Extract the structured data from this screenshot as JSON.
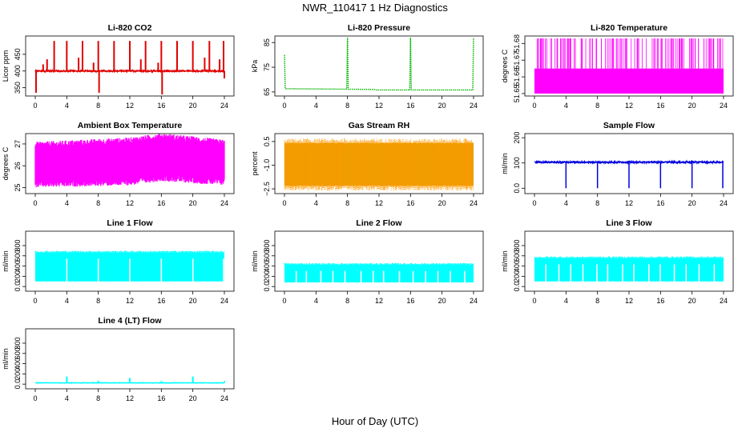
{
  "figure": {
    "title": "NWR_110417  1 Hz Diagnostics",
    "xlabel": "Hour of Day (UTC)"
  },
  "chart_data": [
    {
      "type": "line",
      "title": "Li-820 CO2",
      "ylabel": "Licor ppm",
      "color": "#e00000",
      "xlim": [
        0,
        24
      ],
      "ylim": [
        330,
        500
      ],
      "yticks": [
        350,
        400,
        450
      ],
      "baseline": 400,
      "noise": 4,
      "spikes": [
        {
          "x": 0.1,
          "y": 335
        },
        {
          "x": 1.0,
          "y": 420
        },
        {
          "x": 1.5,
          "y": 435
        },
        {
          "x": 2.4,
          "y": 490
        },
        {
          "x": 4.0,
          "y": 490
        },
        {
          "x": 5.5,
          "y": 440
        },
        {
          "x": 6.0,
          "y": 490
        },
        {
          "x": 7.4,
          "y": 425
        },
        {
          "x": 8.0,
          "y": 490
        },
        {
          "x": 8.1,
          "y": 335
        },
        {
          "x": 10.0,
          "y": 490
        },
        {
          "x": 12.0,
          "y": 490
        },
        {
          "x": 13.4,
          "y": 435
        },
        {
          "x": 14.0,
          "y": 490
        },
        {
          "x": 15.6,
          "y": 425
        },
        {
          "x": 16.0,
          "y": 490
        },
        {
          "x": 16.1,
          "y": 330
        },
        {
          "x": 18.0,
          "y": 490
        },
        {
          "x": 20.0,
          "y": 490
        },
        {
          "x": 21.5,
          "y": 440
        },
        {
          "x": 22.1,
          "y": 490
        },
        {
          "x": 23.4,
          "y": 435
        },
        {
          "x": 23.9,
          "y": 490
        },
        {
          "x": 24.0,
          "y": 378
        }
      ]
    },
    {
      "type": "line",
      "title": "Li-820 Pressure",
      "ylabel": "kPa",
      "color": "#00b400",
      "xlim": [
        0,
        24
      ],
      "ylim": [
        64,
        87
      ],
      "yticks": [
        65,
        75,
        85
      ],
      "points": [
        {
          "x": 0.0,
          "y": 80
        },
        {
          "x": 0.1,
          "y": 66.3
        },
        {
          "x": 7.9,
          "y": 66.1
        },
        {
          "x": 8.0,
          "y": 87
        },
        {
          "x": 8.1,
          "y": 66.1
        },
        {
          "x": 11.5,
          "y": 66.0
        },
        {
          "x": 11.6,
          "y": 65.8
        },
        {
          "x": 15.9,
          "y": 65.8
        },
        {
          "x": 16.0,
          "y": 87
        },
        {
          "x": 16.1,
          "y": 65.8
        },
        {
          "x": 23.9,
          "y": 65.8
        },
        {
          "x": 24.0,
          "y": 87
        }
      ]
    },
    {
      "type": "line",
      "title": "Li-820 Temperature",
      "ylabel": "degrees C",
      "color": "#ff00ff",
      "xlim": [
        0,
        24
      ],
      "ylim": [
        51.6495,
        51.6835
      ],
      "yticks": [
        51.65,
        51.66,
        51.67,
        51.68
      ],
      "band": [
        51.65,
        51.665
      ],
      "spike_top": 51.683
    },
    {
      "type": "line",
      "title": "Ambient Box Temperature",
      "ylabel": "degrees C",
      "color": "#ff00ff",
      "xlim": [
        0,
        24
      ],
      "ylim": [
        24.8,
        27.4
      ],
      "yticks": [
        25.0,
        26.0,
        27.0
      ],
      "band_lo": [
        {
          "x": 0,
          "y": 25.3
        },
        {
          "x": 12,
          "y": 25.4
        },
        {
          "x": 16,
          "y": 25.6
        },
        {
          "x": 24,
          "y": 25.4
        }
      ],
      "band_hi": [
        {
          "x": 0,
          "y": 26.8
        },
        {
          "x": 12,
          "y": 27.0
        },
        {
          "x": 16,
          "y": 27.2
        },
        {
          "x": 24,
          "y": 26.9
        }
      ]
    },
    {
      "type": "scatter",
      "title": "Gas Stream RH",
      "ylabel": "percent",
      "color": "#ff9900",
      "xlim": [
        0,
        24
      ],
      "ylim": [
        -2.7,
        0.9
      ],
      "yticks": [
        -2.5,
        -1.0,
        0.5
      ],
      "band_lo": -2.3,
      "band_hi": 0.4
    },
    {
      "type": "line",
      "title": "Sample Flow",
      "ylabel": "ml/min",
      "color": "#0000e0",
      "xlim": [
        0,
        24
      ],
      "ylim": [
        -15,
        210
      ],
      "yticks": [
        0,
        100,
        200
      ],
      "baseline": 103,
      "dips": [
        {
          "x": 4.0,
          "y": 0
        },
        {
          "x": 8.0,
          "y": 0
        },
        {
          "x": 12.0,
          "y": 0
        },
        {
          "x": 16.0,
          "y": 0
        },
        {
          "x": 20.0,
          "y": 0
        },
        {
          "x": 23.9,
          "y": 0
        }
      ]
    },
    {
      "type": "area",
      "title": "Line 1 Flow",
      "ylabel": "ml/min",
      "color": "#00ffff",
      "xlim": [
        0,
        24
      ],
      "ylim": [
        -60,
        1050
      ],
      "yticks": [
        0,
        200,
        400,
        600,
        800
      ],
      "band": [
        100,
        670
      ],
      "gaps": [
        4.0,
        8.0,
        12.0,
        16.0,
        20.0,
        23.9
      ]
    },
    {
      "type": "area",
      "title": "Line 2 Flow",
      "ylabel": "ml/min",
      "color": "#00ffff",
      "xlim": [
        0,
        24
      ],
      "ylim": [
        -60,
        1050
      ],
      "yticks": [
        0,
        200,
        400,
        600,
        800
      ],
      "band": [
        80,
        430
      ]
    },
    {
      "type": "area",
      "title": "Line 3 Flow",
      "ylabel": "ml/min",
      "color": "#00ffff",
      "xlim": [
        0,
        24
      ],
      "ylim": [
        -60,
        1050
      ],
      "yticks": [
        0,
        200,
        400,
        600,
        800
      ],
      "band": [
        100,
        560
      ]
    },
    {
      "type": "line",
      "title": "Line 4 (LT) Flow",
      "ylabel": "ml/min",
      "color": "#00ffff",
      "xlim": [
        0,
        24
      ],
      "ylim": [
        -60,
        1050
      ],
      "yticks": [
        0,
        200,
        400,
        600,
        800
      ],
      "baseline": 25,
      "spikes": [
        {
          "x": 4.0,
          "y": 150
        },
        {
          "x": 8.0,
          "y": 65
        },
        {
          "x": 12.0,
          "y": 120
        },
        {
          "x": 16.0,
          "y": 60
        },
        {
          "x": 20.0,
          "y": 150
        },
        {
          "x": 24.0,
          "y": 60
        }
      ]
    }
  ],
  "xticks": [
    0,
    4,
    8,
    12,
    16,
    20,
    24
  ]
}
